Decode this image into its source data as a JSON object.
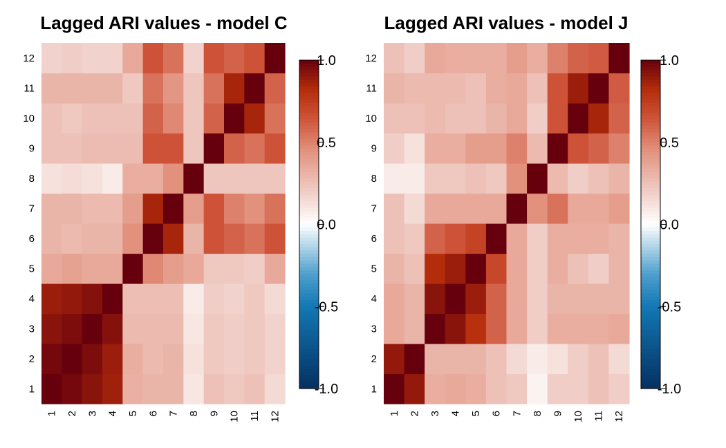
{
  "chart_data": [
    {
      "type": "heatmap",
      "title": "Lagged ARI values - model C",
      "xlabel": "",
      "ylabel": "",
      "x_labels": [
        "1",
        "2",
        "3",
        "4",
        "5",
        "6",
        "7",
        "8",
        "9",
        "10",
        "11",
        "12"
      ],
      "y_labels": [
        "1",
        "2",
        "3",
        "4",
        "5",
        "6",
        "7",
        "8",
        "9",
        "10",
        "11",
        "12"
      ],
      "values": [
        [
          1.0,
          0.97,
          0.92,
          0.87,
          0.32,
          0.3,
          0.3,
          0.1,
          0.25,
          0.22,
          0.25,
          0.15
        ],
        [
          0.97,
          1.0,
          0.95,
          0.88,
          0.33,
          0.28,
          0.3,
          0.12,
          0.22,
          0.2,
          0.22,
          0.18
        ],
        [
          0.92,
          0.95,
          1.0,
          0.93,
          0.28,
          0.28,
          0.28,
          0.1,
          0.22,
          0.2,
          0.22,
          0.18
        ],
        [
          0.88,
          0.9,
          0.93,
          1.0,
          0.26,
          0.26,
          0.26,
          0.08,
          0.2,
          0.18,
          0.22,
          0.15
        ],
        [
          0.35,
          0.38,
          0.35,
          0.35,
          1.0,
          0.48,
          0.4,
          0.35,
          0.22,
          0.22,
          0.2,
          0.35
        ],
        [
          0.3,
          0.28,
          0.3,
          0.3,
          0.45,
          1.0,
          0.85,
          0.3,
          0.65,
          0.6,
          0.55,
          0.65
        ],
        [
          0.3,
          0.3,
          0.28,
          0.28,
          0.4,
          0.85,
          1.0,
          0.4,
          0.65,
          0.5,
          0.45,
          0.55
        ],
        [
          0.12,
          0.14,
          0.12,
          0.08,
          0.33,
          0.33,
          0.45,
          1.0,
          0.23,
          0.23,
          0.23,
          0.23
        ],
        [
          0.25,
          0.25,
          0.27,
          0.27,
          0.27,
          0.65,
          0.65,
          0.23,
          1.0,
          0.6,
          0.55,
          0.65
        ],
        [
          0.25,
          0.22,
          0.25,
          0.25,
          0.25,
          0.6,
          0.48,
          0.23,
          0.6,
          1.0,
          0.85,
          0.55
        ],
        [
          0.3,
          0.3,
          0.3,
          0.3,
          0.22,
          0.55,
          0.43,
          0.23,
          0.55,
          0.85,
          1.0,
          0.6
        ],
        [
          0.18,
          0.2,
          0.18,
          0.18,
          0.35,
          0.65,
          0.55,
          0.18,
          0.65,
          0.6,
          0.65,
          1.0
        ]
      ],
      "colorbar": {
        "min": -1.0,
        "max": 1.0,
        "ticks": [
          "1.0",
          "0.5",
          "0.0",
          "-0.5",
          "-1.0"
        ]
      }
    },
    {
      "type": "heatmap",
      "title": "Lagged ARI values - model J",
      "xlabel": "",
      "ylabel": "",
      "x_labels": [
        "1",
        "2",
        "3",
        "4",
        "5",
        "6",
        "7",
        "8",
        "9",
        "10",
        "11",
        "12"
      ],
      "y_labels": [
        "1",
        "2",
        "3",
        "4",
        "5",
        "6",
        "7",
        "8",
        "9",
        "10",
        "11",
        "12"
      ],
      "values": [
        [
          1.0,
          0.9,
          0.33,
          0.35,
          0.33,
          0.25,
          0.22,
          0.05,
          0.2,
          0.2,
          0.25,
          0.2
        ],
        [
          0.9,
          1.0,
          0.3,
          0.3,
          0.3,
          0.25,
          0.15,
          0.08,
          0.12,
          0.2,
          0.25,
          0.15
        ],
        [
          0.35,
          0.3,
          1.0,
          0.92,
          0.8,
          0.6,
          0.35,
          0.2,
          0.33,
          0.33,
          0.33,
          0.35
        ],
        [
          0.35,
          0.3,
          0.92,
          1.0,
          0.88,
          0.6,
          0.35,
          0.2,
          0.3,
          0.3,
          0.3,
          0.3
        ],
        [
          0.3,
          0.25,
          0.82,
          0.88,
          1.0,
          0.7,
          0.35,
          0.2,
          0.33,
          0.25,
          0.2,
          0.3
        ],
        [
          0.25,
          0.22,
          0.6,
          0.65,
          0.72,
          1.0,
          0.35,
          0.2,
          0.33,
          0.33,
          0.33,
          0.3
        ],
        [
          0.25,
          0.15,
          0.35,
          0.35,
          0.35,
          0.35,
          1.0,
          0.45,
          0.55,
          0.35,
          0.35,
          0.4
        ],
        [
          0.08,
          0.08,
          0.22,
          0.22,
          0.25,
          0.22,
          0.45,
          1.0,
          0.28,
          0.2,
          0.25,
          0.3
        ],
        [
          0.2,
          0.12,
          0.33,
          0.33,
          0.4,
          0.4,
          0.5,
          0.28,
          1.0,
          0.65,
          0.6,
          0.5
        ],
        [
          0.25,
          0.25,
          0.28,
          0.25,
          0.25,
          0.3,
          0.35,
          0.2,
          0.65,
          1.0,
          0.85,
          0.6
        ],
        [
          0.3,
          0.28,
          0.28,
          0.28,
          0.25,
          0.33,
          0.35,
          0.25,
          0.65,
          0.88,
          1.0,
          0.62
        ],
        [
          0.25,
          0.2,
          0.35,
          0.33,
          0.33,
          0.33,
          0.4,
          0.33,
          0.5,
          0.6,
          0.62,
          1.0
        ]
      ],
      "colorbar": {
        "min": -1.0,
        "max": 1.0,
        "ticks": [
          "1.0",
          "0.5",
          "0.0",
          "-0.5",
          "-1.0"
        ]
      }
    }
  ]
}
